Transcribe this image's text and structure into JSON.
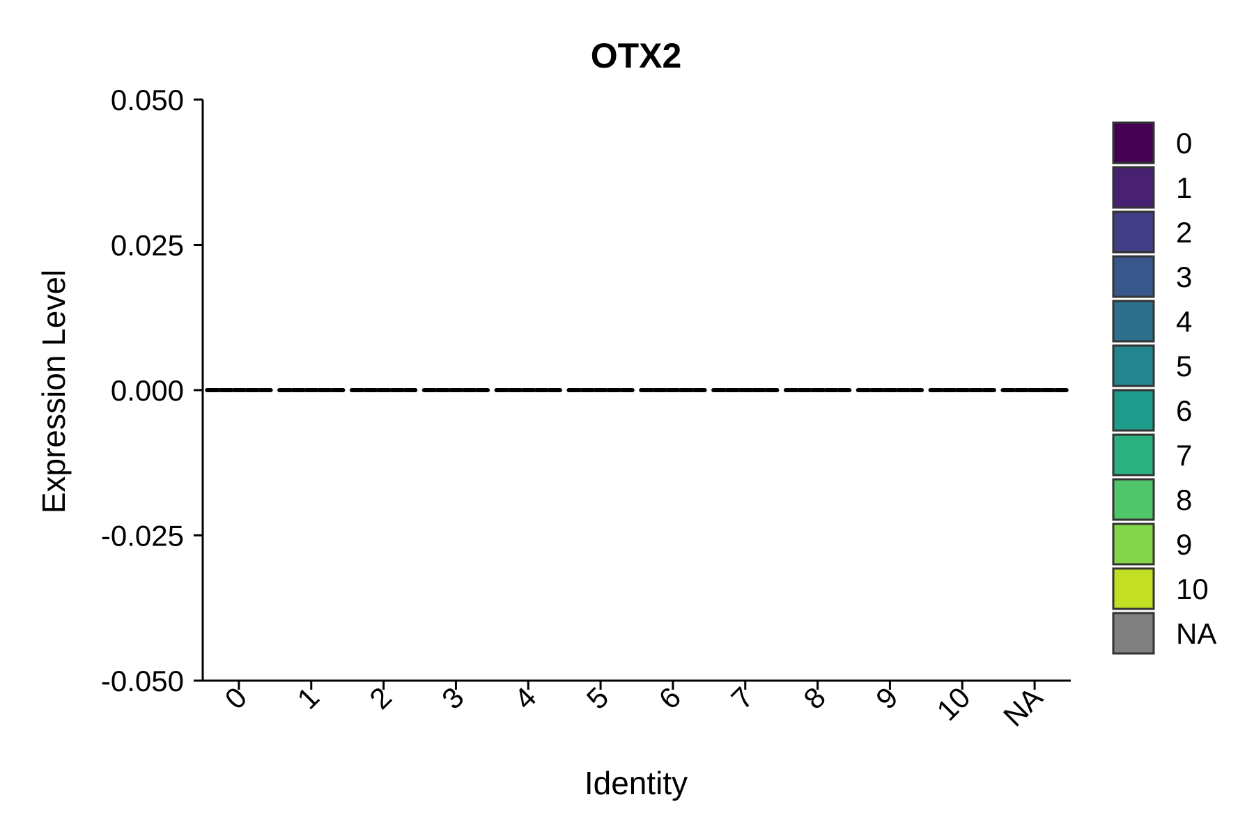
{
  "chart_data": {
    "type": "violin",
    "title": "OTX2",
    "xlabel": "Identity",
    "ylabel": "Expression Level",
    "categories": [
      "0",
      "1",
      "2",
      "3",
      "4",
      "5",
      "6",
      "7",
      "8",
      "9",
      "10",
      "NA"
    ],
    "values": [
      0,
      0,
      0,
      0,
      0,
      0,
      0,
      0,
      0,
      0,
      0,
      0
    ],
    "ylim": [
      -0.05,
      0.05
    ],
    "yticks": [
      0.05,
      0.025,
      0.0,
      -0.025,
      -0.05
    ],
    "ytick_labels": [
      "0.050",
      "0.025",
      "0.000",
      "-0.025",
      "-0.050"
    ],
    "grid": false,
    "legend": {
      "placement": "right",
      "entries": [
        {
          "label": "0",
          "color": "#440154"
        },
        {
          "label": "1",
          "color": "#482173"
        },
        {
          "label": "2",
          "color": "#433E85"
        },
        {
          "label": "3",
          "color": "#38588C"
        },
        {
          "label": "4",
          "color": "#2D708E"
        },
        {
          "label": "5",
          "color": "#25858E"
        },
        {
          "label": "6",
          "color": "#1E9B8A"
        },
        {
          "label": "7",
          "color": "#2BB07F"
        },
        {
          "label": "8",
          "color": "#51C56A"
        },
        {
          "label": "9",
          "color": "#85D54A"
        },
        {
          "label": "10",
          "color": "#C2DF23"
        },
        {
          "label": "NA",
          "color": "#808080"
        }
      ]
    }
  }
}
